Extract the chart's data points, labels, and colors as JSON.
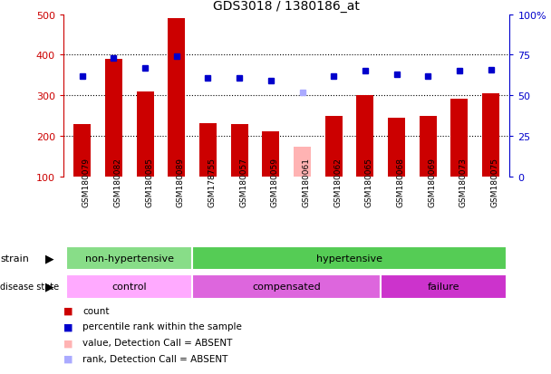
{
  "title": "GDS3018 / 1380186_at",
  "samples": [
    "GSM180079",
    "GSM180082",
    "GSM180085",
    "GSM180089",
    "GSM178755",
    "GSM180057",
    "GSM180059",
    "GSM180061",
    "GSM180062",
    "GSM180065",
    "GSM180068",
    "GSM180069",
    "GSM180073",
    "GSM180075"
  ],
  "counts": [
    230,
    390,
    310,
    490,
    232,
    230,
    212,
    175,
    250,
    300,
    245,
    250,
    293,
    305
  ],
  "percentile_ranks": [
    62,
    73,
    67,
    74,
    61,
    61,
    59,
    52,
    62,
    65,
    63,
    62,
    65,
    66
  ],
  "absent_indices": [
    7
  ],
  "bar_color_present": "#cc0000",
  "bar_color_absent": "#ffb3b3",
  "dot_color_present": "#0000cc",
  "dot_color_absent": "#aaaaff",
  "ylim_left": [
    100,
    500
  ],
  "ylim_right": [
    0,
    100
  ],
  "yticks_left": [
    100,
    200,
    300,
    400,
    500
  ],
  "yticks_right": [
    0,
    25,
    50,
    75,
    100
  ],
  "strain_groups": [
    {
      "label": "non-hypertensive",
      "start": 0,
      "end": 4,
      "color": "#88dd88"
    },
    {
      "label": "hypertensive",
      "start": 4,
      "end": 14,
      "color": "#55cc55"
    }
  ],
  "disease_groups": [
    {
      "label": "control",
      "start": 0,
      "end": 4,
      "color": "#ffaaff"
    },
    {
      "label": "compensated",
      "start": 4,
      "end": 10,
      "color": "#dd66dd"
    },
    {
      "label": "failure",
      "start": 10,
      "end": 14,
      "color": "#cc33cc"
    }
  ],
  "bg_color": "#ffffff",
  "tick_area_color": "#cccccc",
  "bar_width": 0.55,
  "grid_dotted_values": [
    200,
    300,
    400
  ]
}
